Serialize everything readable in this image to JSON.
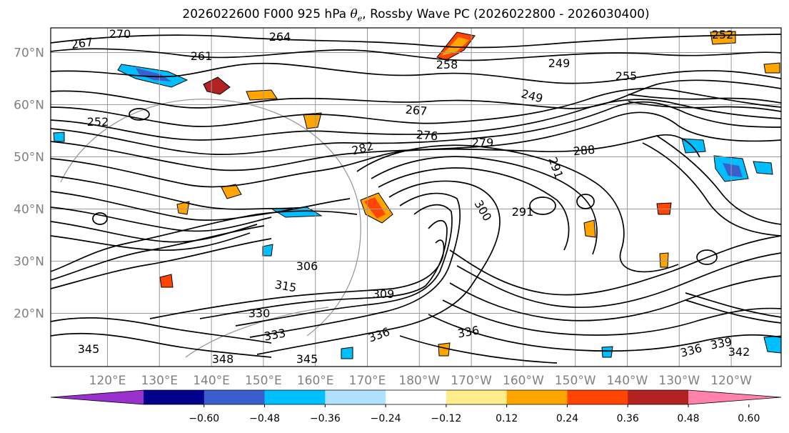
{
  "title": {
    "prefix": "2026022600 F000 925 hPa ",
    "theta": "θ",
    "theta_sub": "e",
    "suffix": ", Rossby Wave PC (2026022800 - 2026030400)"
  },
  "map": {
    "lat_labels": [
      {
        "text": "70°N",
        "lat": 70
      },
      {
        "text": "60°N",
        "lat": 60
      },
      {
        "text": "50°N",
        "lat": 50
      },
      {
        "text": "40°N",
        "lat": 40
      },
      {
        "text": "30°N",
        "lat": 30
      },
      {
        "text": "20°N",
        "lat": 20
      }
    ],
    "lon_labels": [
      "120°E",
      "130°E",
      "140°E",
      "150°E",
      "160°E",
      "170°E",
      "180°W",
      "170°W",
      "160°W",
      "150°W",
      "140°W",
      "130°W",
      "120°W"
    ],
    "contour_labels": [
      {
        "text": "267"
      },
      {
        "text": "270"
      },
      {
        "text": "264"
      },
      {
        "text": "261"
      },
      {
        "text": "258"
      },
      {
        "text": "255"
      },
      {
        "text": "252"
      },
      {
        "text": "252"
      },
      {
        "text": "249"
      },
      {
        "text": "249"
      },
      {
        "text": "267"
      },
      {
        "text": "276"
      },
      {
        "text": "279"
      },
      {
        "text": "282"
      },
      {
        "text": "288"
      },
      {
        "text": "291"
      },
      {
        "text": "291"
      },
      {
        "text": "300"
      },
      {
        "text": "306"
      },
      {
        "text": "309"
      },
      {
        "text": "315"
      },
      {
        "text": "330"
      },
      {
        "text": "333"
      },
      {
        "text": "336"
      },
      {
        "text": "336"
      },
      {
        "text": "342"
      },
      {
        "text": "345"
      },
      {
        "text": "345"
      },
      {
        "text": "348"
      },
      {
        "text": "336"
      },
      {
        "text": "339"
      }
    ]
  },
  "colorbar": {
    "colors": [
      "#9932cc",
      "#00008b",
      "#3a5fcd",
      "#00bfff",
      "#b0e2ff",
      "#ffffff",
      "#ffec8b",
      "#ffa500",
      "#ff4500",
      "#b22222",
      "#ff82ab"
    ],
    "tick_labels": [
      "−0.60",
      "−0.48",
      "−0.36",
      "−0.24",
      "−0.12",
      "0.12",
      "0.24",
      "0.36",
      "0.48",
      "0.60"
    ]
  }
}
